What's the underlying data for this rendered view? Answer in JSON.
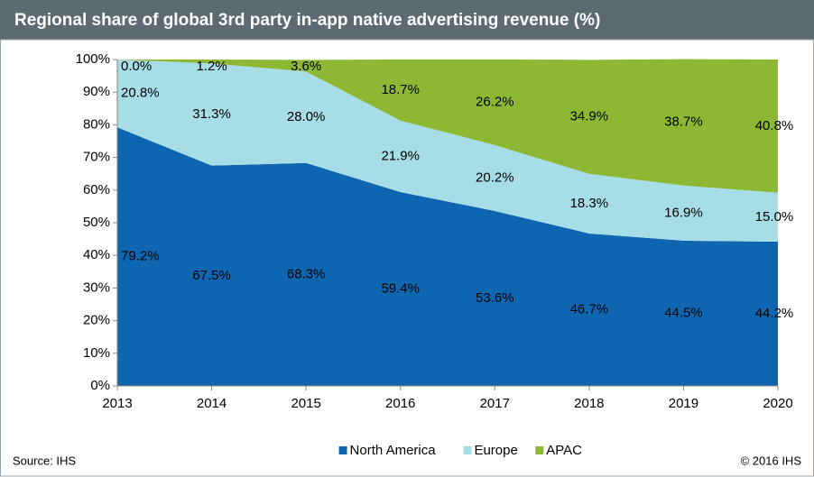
{
  "chart_data": {
    "type": "area",
    "stacked": true,
    "title": "Regional share of global 3rd party in-app native advertising revenue (%)",
    "x": [
      2013,
      2014,
      2015,
      2016,
      2017,
      2018,
      2019,
      2020
    ],
    "xlim": [
      2013,
      2020
    ],
    "xticks": [
      2013,
      2014,
      2015,
      2016,
      2017,
      2018,
      2019,
      2020
    ],
    "ylim": [
      0,
      100
    ],
    "yticks": [
      {
        "value": 0,
        "label": "0%"
      },
      {
        "value": 10,
        "label": "10%"
      },
      {
        "value": 20,
        "label": "20%"
      },
      {
        "value": 30,
        "label": "30%"
      },
      {
        "value": 40,
        "label": "40%"
      },
      {
        "value": 50,
        "label": "50%"
      },
      {
        "value": 60,
        "label": "60%"
      },
      {
        "value": 70,
        "label": "70%"
      },
      {
        "value": 80,
        "label": "80%"
      },
      {
        "value": 90,
        "label": "90%"
      },
      {
        "value": 100,
        "label": "100%"
      }
    ],
    "grid": false,
    "legend": "bottom",
    "series": [
      {
        "name": "North America",
        "color": "#0f66b0",
        "values": [
          79.2,
          67.5,
          68.3,
          59.4,
          53.6,
          46.7,
          44.5,
          44.2
        ],
        "value_labels": [
          "79.2%",
          "67.5%",
          "68.3%",
          "59.4%",
          "53.6%",
          "46.7%",
          "44.5%",
          "44.2%"
        ]
      },
      {
        "name": "Europe",
        "color": "#a6dde6",
        "values": [
          20.8,
          31.3,
          28.0,
          21.9,
          20.2,
          18.3,
          16.9,
          15.0
        ],
        "value_labels": [
          "20.8%",
          "31.3%",
          "28.0%",
          "21.9%",
          "20.2%",
          "18.3%",
          "16.9%",
          "15.0%"
        ]
      },
      {
        "name": "APAC",
        "color": "#8db833",
        "values": [
          0.0,
          1.2,
          3.6,
          18.7,
          26.2,
          34.9,
          38.7,
          40.8
        ],
        "value_labels": [
          "0.0%",
          "1.2%",
          "3.6%",
          "18.7%",
          "26.2%",
          "34.9%",
          "38.7%",
          "40.8%"
        ]
      }
    ],
    "source": "Source: IHS",
    "copyright": "© 2016 IHS"
  }
}
